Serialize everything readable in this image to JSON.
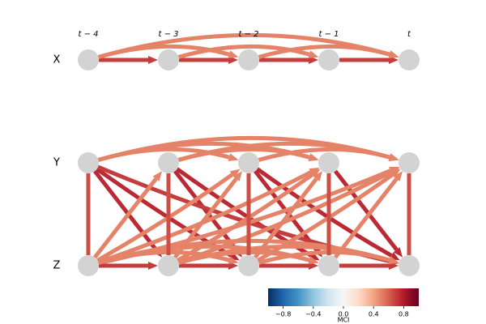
{
  "variables": [
    "X",
    "Y",
    "Z"
  ],
  "times": [
    "t − 4",
    "t − 3",
    "t − 2",
    "t − 1",
    "t"
  ],
  "links": [
    {
      "from": 0,
      "to": 0,
      "lag": 1,
      "value": 0.7
    },
    {
      "from": 0,
      "to": 0,
      "lag": 2,
      "value": 0.5
    },
    {
      "from": 0,
      "to": 0,
      "lag": 4,
      "value": 0.5
    },
    {
      "from": 1,
      "to": 1,
      "lag": 2,
      "value": 0.5
    },
    {
      "from": 1,
      "to": 1,
      "lag": 3,
      "value": 0.5
    },
    {
      "from": 1,
      "to": 1,
      "lag": 4,
      "value": 0.5
    },
    {
      "from": 1,
      "to": 2,
      "lag": 1,
      "value": 0.75
    },
    {
      "from": 1,
      "to": 2,
      "lag": 2,
      "value": 0.75
    },
    {
      "from": 1,
      "to": 2,
      "lag": 4,
      "value": 0.7
    },
    {
      "from": 2,
      "to": 1,
      "lag": 1,
      "value": 0.5
    },
    {
      "from": 2,
      "to": 1,
      "lag": 2,
      "value": 0.5
    },
    {
      "from": 2,
      "to": 1,
      "lag": 3,
      "value": 0.5
    },
    {
      "from": 2,
      "to": 1,
      "lag": 4,
      "value": 0.5
    },
    {
      "from": 2,
      "to": 2,
      "lag": 1,
      "value": 0.7
    },
    {
      "from": 2,
      "to": 2,
      "lag": 2,
      "value": 0.5
    },
    {
      "from": 2,
      "to": 2,
      "lag": 3,
      "value": 0.5
    },
    {
      "from": 2,
      "to": 2,
      "lag": 4,
      "value": 0.5
    },
    {
      "from": 1,
      "to": 2,
      "lag": 0,
      "value": 0.65
    }
  ],
  "colorbar": {
    "label": "MCI",
    "lim": [
      -1,
      1
    ],
    "ticks": [
      {
        "value": -0.8,
        "label": "−0.8"
      },
      {
        "value": -0.4,
        "label": "−0.4"
      },
      {
        "value": 0,
        "label": "0.0"
      },
      0.4,
      0.8
    ],
    "colors": [
      "#053061",
      "#2166ac",
      "#4393c3",
      "#92c5de",
      "#d1e5f0",
      "#f7f7f7",
      "#fddbc7",
      "#f4a582",
      "#d6604d",
      "#b2182b",
      "#67001f"
    ]
  }
}
